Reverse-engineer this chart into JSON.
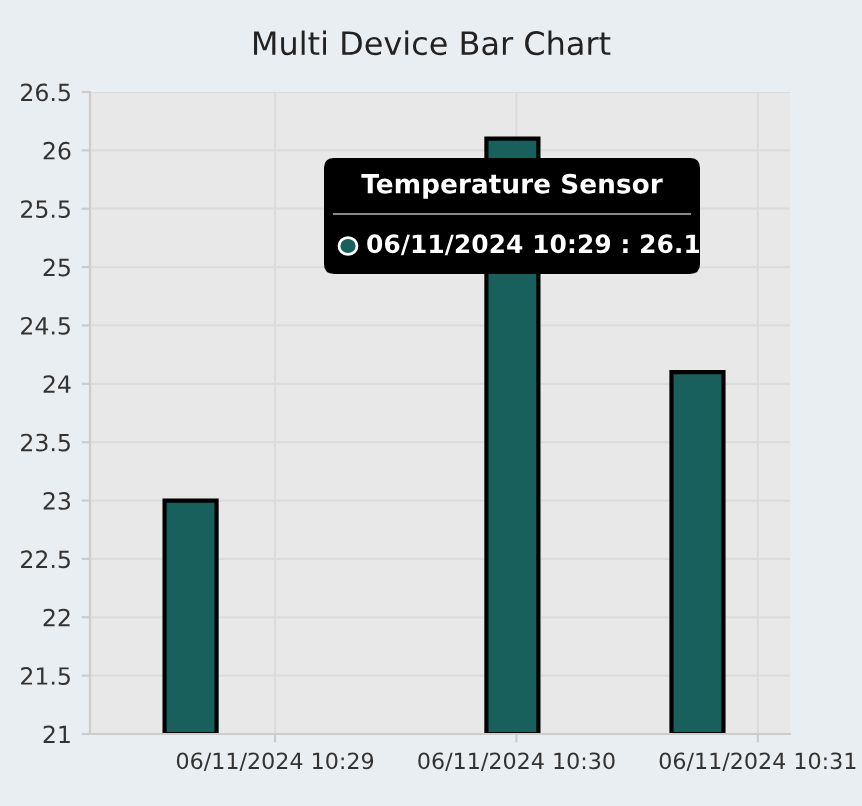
{
  "chart_data": {
    "type": "bar",
    "title": "Multi Device Bar Chart",
    "x": [
      "2024-06-11T10:28:39",
      "2024-06-11T10:29:59",
      "2024-06-11T10:30:45"
    ],
    "series": [
      {
        "color": "#17605b",
        "values": [
          23,
          26.1,
          24.1
        ]
      }
    ],
    "xlim": [
      "2024-06-11T10:28:14",
      "2024-06-11T10:31:08"
    ],
    "xticks": [
      {
        "value": "2024-06-11T10:29",
        "label": "06/11/2024 10:29"
      },
      {
        "value": "2024-06-11T10:30",
        "label": "06/11/2024 10:30"
      },
      {
        "value": "2024-06-11T10:31",
        "label": "06/11/2024 10:31"
      }
    ],
    "ylim": [
      21,
      26.5
    ],
    "yticks": [
      21,
      21.5,
      22,
      22.5,
      23,
      23.5,
      24,
      24.5,
      25,
      25.5,
      26,
      26.5
    ],
    "grid": true,
    "annotations": [
      "Temperature Sensor",
      "06/11/2024 10:29 : 26.1"
    ]
  }
}
